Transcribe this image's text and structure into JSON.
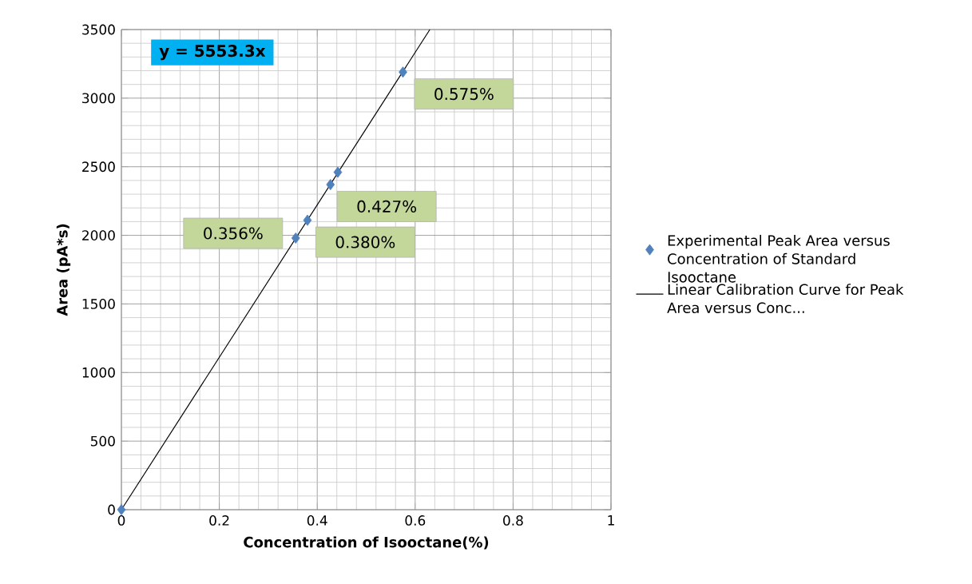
{
  "chart_data": {
    "type": "scatter",
    "xlabel": "Concentration of Isooctane(%)",
    "ylabel": "Area (pA*s)",
    "xlim": [
      0,
      1
    ],
    "xticks": [
      0,
      0.2,
      0.4,
      0.6,
      0.8,
      1
    ],
    "ylim": [
      0,
      3500
    ],
    "yticks": [
      0,
      500,
      1000,
      1500,
      2000,
      2500,
      3000,
      3500
    ],
    "grid": true,
    "legend": "right",
    "series": [
      {
        "name": "Experimental Peak Area versus Concentration of Standard Isooctane",
        "marker": "diamond",
        "color": "#4f81bd",
        "x": [
          0,
          0.356,
          0.38,
          0.427,
          0.442,
          0.575
        ],
        "values": [
          0,
          1980,
          2110,
          2370,
          2460,
          3190
        ]
      },
      {
        "name": "Linear Calibration Curve for Peak Area versus Conc...",
        "type": "line",
        "marker": "none",
        "line_style": "solid",
        "color": "#000000",
        "x": [
          0,
          0.63
        ],
        "values": [
          0,
          3500
        ]
      }
    ],
    "annotations": [
      "y = 5553.3x",
      {
        "text": "0.575%",
        "x": 0.575,
        "y": 3190
      },
      {
        "text": "0.427%",
        "x": 0.427,
        "y": 2370
      },
      {
        "text": "0.356%",
        "x": 0.356,
        "y": 1980
      },
      {
        "text": "0.380%",
        "x": 0.38,
        "y": 2110
      }
    ]
  }
}
